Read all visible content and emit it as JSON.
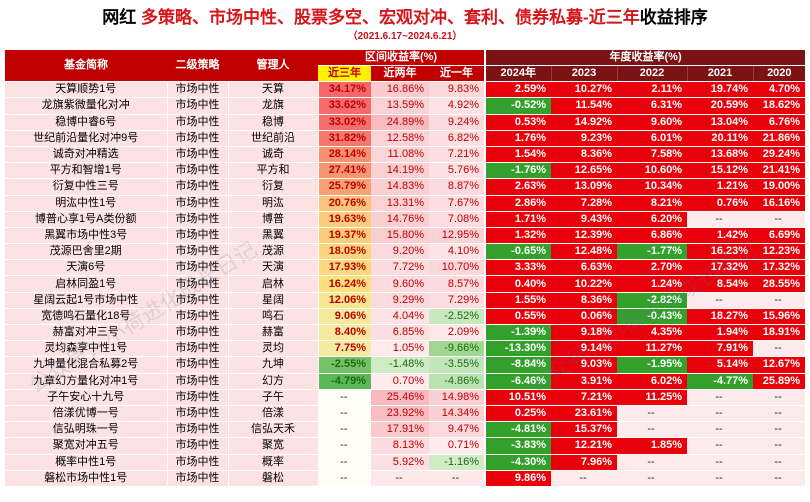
{
  "title": {
    "prefix": "网红 ",
    "highlight": "多策略、市场中性、股票多空、宏观对冲、套利、债券私募-近三年",
    "suffix": "收益排序"
  },
  "subtitle": "（2021.6.17~2024.6.21）",
  "watermark": "公众号：小荷进化成长日记",
  "headers": {
    "fund_name": "基金简称",
    "strategy": "二级策略",
    "manager": "管理人",
    "interval_group": "区间收益率(%)",
    "annual_group": "年度收益率(%)",
    "interval_cols": [
      "近三年",
      "近两年",
      "近一年"
    ],
    "annual_cols": [
      "2024年",
      "2023",
      "2022",
      "2021",
      "2020"
    ]
  },
  "colors": {
    "header_red": "#c00000",
    "header_dark": "#7b1214",
    "highlight_yellow": "#fff200",
    "green_dark": "#34a02c",
    "red_dark": "#e8000b",
    "name_bg": "#fde2e4"
  },
  "rows": [
    {
      "name": "天算顺势1号",
      "strategy": "市场中性",
      "manager": "天算",
      "y3": "34.17%",
      "y2": "16.86%",
      "y1": "9.83%",
      "a2024": "2.59%",
      "a2023": "10.27%",
      "a2022": "2.11%",
      "a2021": "19.74%",
      "a2020": "4.70%"
    },
    {
      "name": "龙旗紫微量化对冲",
      "strategy": "市场中性",
      "manager": "龙旗",
      "y3": "33.62%",
      "y2": "13.59%",
      "y1": "4.92%",
      "a2024": "-0.52%",
      "a2023": "11.54%",
      "a2022": "6.31%",
      "a2021": "20.59%",
      "a2020": "18.62%"
    },
    {
      "name": "稳博中睿6号",
      "strategy": "市场中性",
      "manager": "稳博",
      "y3": "33.02%",
      "y2": "24.89%",
      "y1": "9.24%",
      "a2024": "0.53%",
      "a2023": "14.92%",
      "a2022": "9.60%",
      "a2021": "13.04%",
      "a2020": "6.76%"
    },
    {
      "name": "世纪前沿量化对冲9号",
      "strategy": "市场中性",
      "manager": "世纪前沿",
      "y3": "31.82%",
      "y2": "12.58%",
      "y1": "6.82%",
      "a2024": "1.76%",
      "a2023": "9.23%",
      "a2022": "6.01%",
      "a2021": "20.11%",
      "a2020": "21.86%"
    },
    {
      "name": "诚奇对冲精选",
      "strategy": "市场中性",
      "manager": "诚奇",
      "y3": "28.14%",
      "y2": "11.08%",
      "y1": "7.21%",
      "a2024": "1.54%",
      "a2023": "8.36%",
      "a2022": "7.58%",
      "a2021": "13.68%",
      "a2020": "29.24%"
    },
    {
      "name": "平方和智增1号",
      "strategy": "市场中性",
      "manager": "平方和",
      "y3": "27.41%",
      "y2": "14.19%",
      "y1": "5.76%",
      "a2024": "-1.76%",
      "a2023": "12.65%",
      "a2022": "10.60%",
      "a2021": "15.12%",
      "a2020": "21.41%"
    },
    {
      "name": "衍复中性三号",
      "strategy": "市场中性",
      "manager": "衍复",
      "y3": "25.79%",
      "y2": "14.83%",
      "y1": "8.87%",
      "a2024": "2.63%",
      "a2023": "13.09%",
      "a2022": "10.34%",
      "a2021": "1.21%",
      "a2020": "19.00%"
    },
    {
      "name": "明汯中性1号",
      "strategy": "市场中性",
      "manager": "明汯",
      "y3": "20.76%",
      "y2": "13.31%",
      "y1": "7.67%",
      "a2024": "2.86%",
      "a2023": "7.28%",
      "a2022": "8.21%",
      "a2021": "0.76%",
      "a2020": "16.16%"
    },
    {
      "name": "博普心享1号A类份额",
      "strategy": "市场中性",
      "manager": "博普",
      "y3": "19.63%",
      "y2": "14.76%",
      "y1": "7.08%",
      "a2024": "1.71%",
      "a2023": "9.43%",
      "a2022": "6.20%",
      "a2021": "--",
      "a2020": "--"
    },
    {
      "name": "黑翼市场中性3号",
      "strategy": "市场中性",
      "manager": "黑翼",
      "y3": "19.37%",
      "y2": "15.80%",
      "y1": "12.95%",
      "a2024": "1.32%",
      "a2023": "12.39%",
      "a2022": "6.86%",
      "a2021": "1.42%",
      "a2020": "6.69%"
    },
    {
      "name": "茂源巴舍里2期",
      "strategy": "市场中性",
      "manager": "茂源",
      "y3": "18.05%",
      "y2": "9.20%",
      "y1": "4.10%",
      "a2024": "-0.65%",
      "a2023": "12.48%",
      "a2022": "-1.77%",
      "a2021": "16.23%",
      "a2020": "12.23%"
    },
    {
      "name": "天演6号",
      "strategy": "市场中性",
      "manager": "天演",
      "y3": "17.93%",
      "y2": "7.72%",
      "y1": "10.70%",
      "a2024": "3.33%",
      "a2023": "6.63%",
      "a2022": "2.70%",
      "a2021": "17.32%",
      "a2020": "17.32%"
    },
    {
      "name": "启林同盈1号",
      "strategy": "市场中性",
      "manager": "启林",
      "y3": "16.24%",
      "y2": "9.60%",
      "y1": "8.57%",
      "a2024": "0.40%",
      "a2023": "10.22%",
      "a2022": "1.24%",
      "a2021": "8.54%",
      "a2020": "28.55%"
    },
    {
      "name": "星阔云起1号市场中性",
      "strategy": "市场中性",
      "manager": "星阔",
      "y3": "12.06%",
      "y2": "9.29%",
      "y1": "7.29%",
      "a2024": "1.55%",
      "a2023": "8.36%",
      "a2022": "-2.82%",
      "a2021": "--",
      "a2020": "--"
    },
    {
      "name": "宽德鸣石量化18号",
      "strategy": "市场中性",
      "manager": "鸣石",
      "y3": "9.06%",
      "y2": "4.04%",
      "y1": "-2.52%",
      "a2024": "0.55%",
      "a2023": "0.06%",
      "a2022": "-0.43%",
      "a2021": "18.27%",
      "a2020": "15.96%"
    },
    {
      "name": "赫富对冲三号",
      "strategy": "市场中性",
      "manager": "赫富",
      "y3": "8.40%",
      "y2": "6.85%",
      "y1": "2.09%",
      "a2024": "-1.39%",
      "a2023": "9.18%",
      "a2022": "4.35%",
      "a2021": "1.94%",
      "a2020": "18.91%"
    },
    {
      "name": "灵均森享中性1号",
      "strategy": "市场中性",
      "manager": "灵均",
      "y3": "7.75%",
      "y2": "1.05%",
      "y1": "-9.66%",
      "a2024": "-13.30%",
      "a2023": "9.14%",
      "a2022": "11.27%",
      "a2021": "7.91%",
      "a2020": "--"
    },
    {
      "name": "九坤量化混合私募2号",
      "strategy": "市场中性",
      "manager": "九坤",
      "y3": "-2.55%",
      "y2": "-1.48%",
      "y1": "-3.55%",
      "a2024": "-8.84%",
      "a2023": "9.03%",
      "a2022": "-1.95%",
      "a2021": "5.14%",
      "a2020": "12.67%"
    },
    {
      "name": "九章幻方量化对冲1号",
      "strategy": "市场中性",
      "manager": "幻方",
      "y3": "-4.79%",
      "y2": "0.70%",
      "y1": "-4.86%",
      "a2024": "-6.46%",
      "a2023": "3.91%",
      "a2022": "6.02%",
      "a2021": "-4.77%",
      "a2020": "25.89%"
    },
    {
      "name": "子午安心十九号",
      "strategy": "市场中性",
      "manager": "子午",
      "y3": "--",
      "y2": "25.46%",
      "y1": "14.98%",
      "a2024": "10.51%",
      "a2023": "7.21%",
      "a2022": "11.25%",
      "a2021": "--",
      "a2020": "--"
    },
    {
      "name": "倍漾优博一号",
      "strategy": "市场中性",
      "manager": "倍漾",
      "y3": "--",
      "y2": "23.92%",
      "y1": "14.34%",
      "a2024": "0.25%",
      "a2023": "23.61%",
      "a2022": "--",
      "a2021": "--",
      "a2020": "--"
    },
    {
      "name": "信弘明珠一号",
      "strategy": "市场中性",
      "manager": "信弘天禾",
      "y3": "--",
      "y2": "17.91%",
      "y1": "9.47%",
      "a2024": "-4.81%",
      "a2023": "15.37%",
      "a2022": "--",
      "a2021": "--",
      "a2020": "--"
    },
    {
      "name": "聚宽对冲五号",
      "strategy": "市场中性",
      "manager": "聚宽",
      "y3": "--",
      "y2": "8.13%",
      "y1": "0.71%",
      "a2024": "-3.83%",
      "a2023": "12.21%",
      "a2022": "1.85%",
      "a2021": "--",
      "a2020": "--"
    },
    {
      "name": "概率中性1号",
      "strategy": "市场中性",
      "manager": "概率",
      "y3": "--",
      "y2": "5.92%",
      "y1": "-1.16%",
      "a2024": "-4.30%",
      "a2023": "7.96%",
      "a2022": "--",
      "a2021": "--",
      "a2020": "--"
    },
    {
      "name": "磐松市场中性1号",
      "strategy": "市场中性",
      "manager": "磐松",
      "y3": "--",
      "y2": "--",
      "y1": "--",
      "a2024": "9.86%",
      "a2023": "--",
      "a2022": "--",
      "a2021": "--",
      "a2020": "--"
    }
  ]
}
